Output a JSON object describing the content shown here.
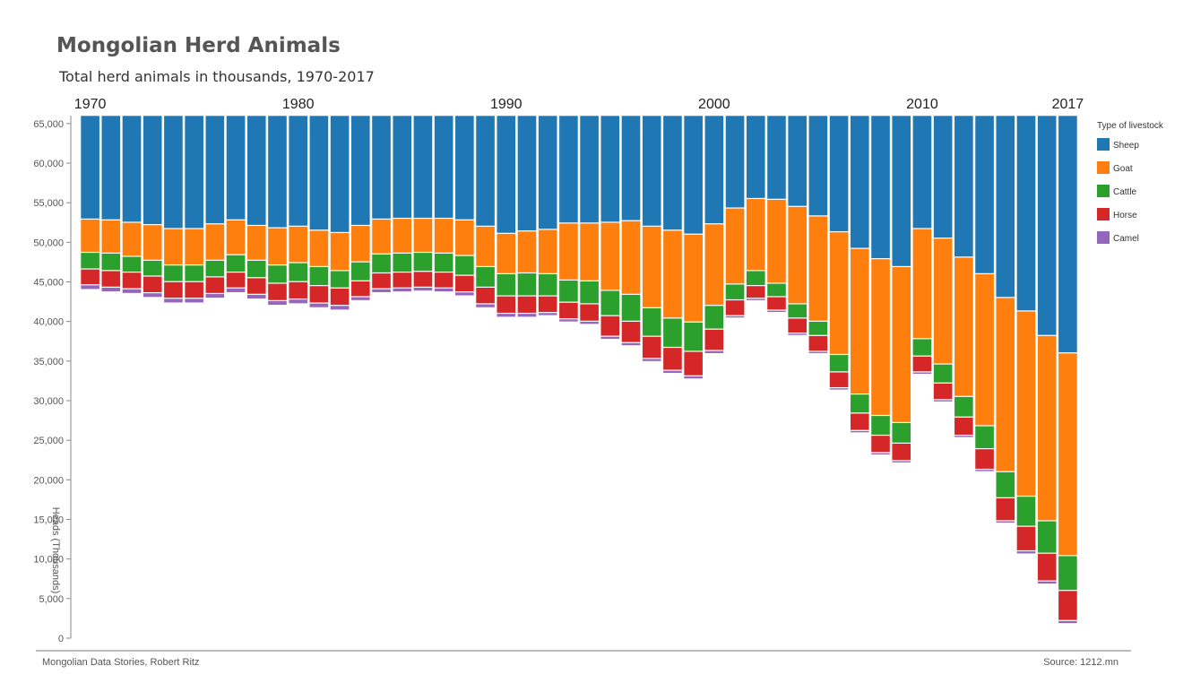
{
  "page": {
    "footer_left": "Mongolian Data Stories, Robert Ritz",
    "footer_right": "Source: 1212.mn"
  },
  "chart_data": {
    "type": "bar",
    "stacked": true,
    "orientation": "top-hanging",
    "title": "Mongolian Herd Animals",
    "subtitle": "Total herd animals in thousands, 1970-2017",
    "ylabel": "Heads (Thousands)",
    "ylim": [
      0,
      66000
    ],
    "yticks": [
      0,
      5000,
      10000,
      15000,
      20000,
      25000,
      30000,
      35000,
      40000,
      45000,
      50000,
      55000,
      60000,
      65000
    ],
    "ytick_labels": [
      "0",
      "5,000",
      "10,000",
      "15,000",
      "20,000",
      "25,000",
      "30,000",
      "35,000",
      "40,000",
      "45,000",
      "50,000",
      "55,000",
      "60,000",
      "65,000"
    ],
    "x_labels_shown": [
      {
        "year": 1970,
        "label": "1970"
      },
      {
        "year": 1980,
        "label": "1980"
      },
      {
        "year": 1990,
        "label": "1990"
      },
      {
        "year": 2000,
        "label": "2000"
      },
      {
        "year": 2010,
        "label": "2010"
      },
      {
        "year": 2017,
        "label": "2017"
      }
    ],
    "legend": {
      "title": "Type of livestock",
      "placement": "top-right",
      "items": [
        {
          "name": "Sheep",
          "color": "#1f77b4"
        },
        {
          "name": "Goat",
          "color": "#ff7f0e"
        },
        {
          "name": "Cattle",
          "color": "#2ca02c"
        },
        {
          "name": "Horse",
          "color": "#d62728"
        },
        {
          "name": "Camel",
          "color": "#9467bd"
        }
      ]
    },
    "grid": false,
    "years": [
      1970,
      1971,
      1972,
      1973,
      1974,
      1975,
      1976,
      1977,
      1978,
      1979,
      1980,
      1981,
      1982,
      1983,
      1984,
      1985,
      1986,
      1987,
      1988,
      1989,
      1990,
      1991,
      1992,
      1993,
      1994,
      1995,
      1996,
      1997,
      1998,
      1999,
      2000,
      2001,
      2002,
      2003,
      2004,
      2005,
      2006,
      2007,
      2008,
      2009,
      2010,
      2011,
      2012,
      2013,
      2014,
      2015,
      2016,
      2017
    ],
    "series": [
      {
        "name": "Sheep",
        "color": "#1f77b4",
        "values": [
          13100,
          13200,
          13500,
          13800,
          14300,
          14300,
          13700,
          13200,
          13900,
          14200,
          14000,
          14500,
          14800,
          13900,
          13100,
          13000,
          13000,
          13000,
          13200,
          14000,
          14900,
          14600,
          14400,
          13600,
          13600,
          13500,
          13300,
          14000,
          14500,
          15000,
          13700,
          11700,
          10500,
          10600,
          11500,
          12700,
          14700,
          16800,
          18100,
          19100,
          14300,
          15500,
          17900,
          20000,
          23000,
          24700,
          27800,
          30000
        ]
      },
      {
        "name": "Goat",
        "color": "#ff7f0e",
        "values": [
          4200,
          4200,
          4300,
          4500,
          4600,
          4600,
          4600,
          4400,
          4400,
          4700,
          4600,
          4600,
          4800,
          4600,
          4400,
          4400,
          4300,
          4400,
          4500,
          5100,
          5100,
          5300,
          5600,
          7200,
          7300,
          8600,
          9300,
          10300,
          11100,
          11100,
          10300,
          9600,
          9100,
          10600,
          12300,
          13300,
          15500,
          18400,
          19800,
          19700,
          13900,
          15900,
          17600,
          19200,
          22000,
          23400,
          23400,
          25600
        ]
      },
      {
        "name": "Cattle",
        "color": "#2ca02c",
        "values": [
          2100,
          2200,
          2000,
          2000,
          2100,
          2100,
          2100,
          2200,
          2200,
          2300,
          2400,
          2400,
          2200,
          2400,
          2400,
          2400,
          2400,
          2400,
          2500,
          2600,
          2800,
          2900,
          2800,
          2800,
          2900,
          3200,
          3400,
          3600,
          3700,
          3700,
          3000,
          2000,
          1900,
          1700,
          1800,
          1800,
          2200,
          2400,
          2500,
          2600,
          2200,
          2400,
          2600,
          2900,
          3300,
          3800,
          4100,
          4400
        ]
      },
      {
        "name": "Horse",
        "color": "#d62728",
        "values": [
          2000,
          2100,
          2100,
          2100,
          2100,
          2100,
          2100,
          2000,
          2100,
          2200,
          2200,
          2200,
          2200,
          2000,
          2000,
          2000,
          2000,
          2000,
          2100,
          2100,
          2200,
          2200,
          2100,
          2100,
          2200,
          2600,
          2700,
          2800,
          2900,
          3100,
          2700,
          2000,
          1600,
          1700,
          1900,
          2000,
          2000,
          2200,
          2200,
          2200,
          2000,
          2100,
          2300,
          2600,
          2900,
          3100,
          3500,
          3800
        ]
      },
      {
        "name": "Camel",
        "color": "#9467bd",
        "values": [
          600,
          600,
          600,
          600,
          600,
          600,
          600,
          600,
          600,
          600,
          600,
          600,
          600,
          500,
          500,
          500,
          500,
          500,
          500,
          500,
          500,
          500,
          400,
          400,
          400,
          400,
          400,
          400,
          400,
          400,
          400,
          300,
          300,
          300,
          300,
          300,
          300,
          300,
          300,
          300,
          300,
          300,
          300,
          300,
          300,
          400,
          400,
          400
        ]
      }
    ]
  }
}
